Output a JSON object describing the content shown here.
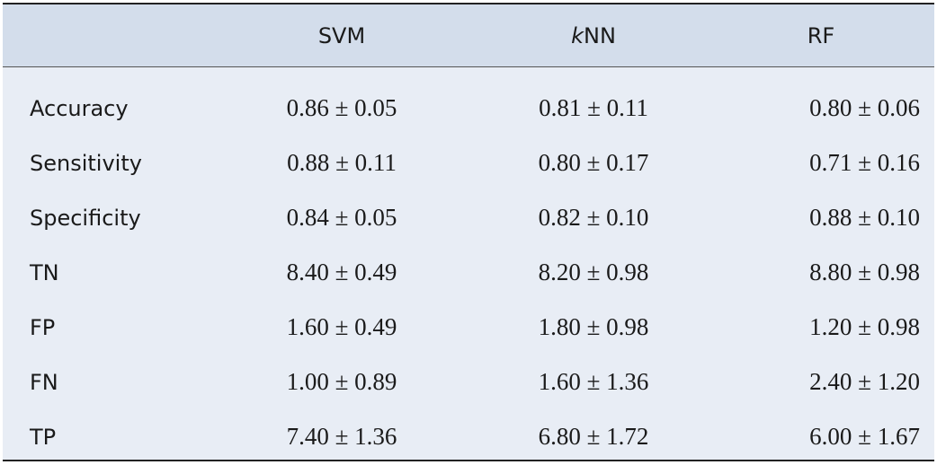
{
  "table": {
    "headers": [
      "",
      "SVM",
      "NN",
      "RF"
    ],
    "knn_prefix": "k",
    "rows": [
      {
        "label": "Accuracy",
        "values": [
          "0.86 ± 0.05",
          "0.81 ± 0.11",
          "0.80 ± 0.06"
        ]
      },
      {
        "label": "Sensitivity",
        "values": [
          "0.88 ± 0.11",
          "0.80 ± 0.17",
          "0.71 ± 0.16"
        ]
      },
      {
        "label": "Specificity",
        "values": [
          "0.84 ± 0.05",
          "0.82 ± 0.10",
          "0.88 ± 0.10"
        ]
      },
      {
        "label": "TN",
        "values": [
          "8.40 ± 0.49",
          "8.20 ± 0.98",
          "8.80 ± 0.98"
        ]
      },
      {
        "label": "FP",
        "values": [
          "1.60 ± 0.49",
          "1.80 ± 0.98",
          "1.20 ± 0.98"
        ]
      },
      {
        "label": "FN",
        "values": [
          "1.00 ± 0.89",
          "1.60 ± 1.36",
          "2.40 ± 1.20"
        ]
      },
      {
        "label": "TP",
        "values": [
          "7.40 ± 1.36",
          "6.80 ± 1.72",
          "6.00 ± 1.67"
        ]
      }
    ]
  },
  "colors": {
    "header_bg": "#d3ddeb",
    "body_bg": "#e8edf5",
    "rule": "#222222"
  }
}
